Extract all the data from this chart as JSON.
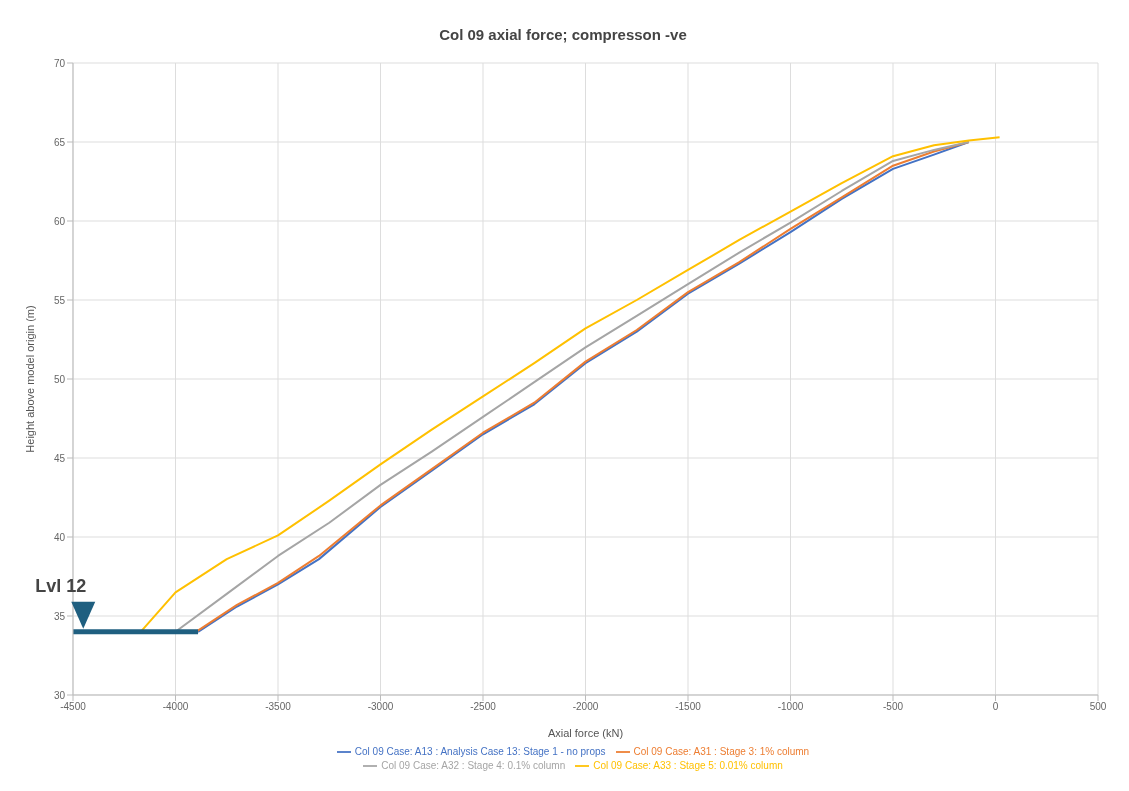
{
  "chart_data": {
    "type": "line",
    "title": "Col 09 axial force; compresson -ve",
    "xlabel": "Axial force (kN)",
    "ylabel": "Height above model origin (m)",
    "xlim": [
      -4500,
      500
    ],
    "xticks": [
      -4500,
      -4000,
      -3500,
      -3000,
      -2500,
      -2000,
      -1500,
      -1000,
      -500,
      0,
      500
    ],
    "ylim": [
      30,
      70
    ],
    "yticks": [
      30,
      35,
      40,
      45,
      50,
      55,
      60,
      65,
      70
    ],
    "grid": true,
    "legend": "bottom",
    "marker": "none",
    "line_style": "solid",
    "series": [
      {
        "name": "Col 09 Case: A13 : Analysis Case 13: Stage 1 - no props",
        "color": "#4472c4",
        "x": [
          -3890,
          -3700,
          -3500,
          -3300,
          -3000,
          -2750,
          -2500,
          -2250,
          -2000,
          -1750,
          -1500,
          -1250,
          -1000,
          -750,
          -500,
          -300,
          -130
        ],
        "values": [
          34,
          35.6,
          37,
          38.6,
          41.9,
          44.2,
          46.5,
          48.4,
          51,
          53,
          55.4,
          57.3,
          59.3,
          61.4,
          63.3,
          64.2,
          65
        ]
      },
      {
        "name": "Col 09 Case: A31 : Stage 3: 1% column",
        "color": "#ed7d31",
        "x": [
          -3900,
          -3700,
          -3500,
          -3300,
          -3000,
          -2750,
          -2500,
          -2250,
          -2000,
          -1750,
          -1500,
          -1250,
          -1000,
          -750,
          -500,
          -300,
          -130
        ],
        "values": [
          34,
          35.7,
          37.1,
          38.8,
          42,
          44.3,
          46.6,
          48.5,
          51.1,
          53.1,
          55.5,
          57.4,
          59.5,
          61.5,
          63.5,
          64.4,
          65
        ]
      },
      {
        "name": "Col 09 Case: A32 : Stage 4: 0.1% column",
        "color": "#a5a5a5",
        "x": [
          -4000,
          -3750,
          -3500,
          -3250,
          -3000,
          -2750,
          -2500,
          -2250,
          -2000,
          -1750,
          -1500,
          -1250,
          -1000,
          -750,
          -500,
          -300,
          -130
        ],
        "values": [
          34,
          36.4,
          38.8,
          40.9,
          43.3,
          45.4,
          47.6,
          49.8,
          52,
          54,
          56,
          58,
          59.9,
          61.9,
          63.8,
          64.5,
          65
        ]
      },
      {
        "name": "Col 09 Case: A33 : Stage 5: 0.01% column",
        "color": "#ffc000",
        "x": [
          -4170,
          -4000,
          -3750,
          -3500,
          -3250,
          -3000,
          -2750,
          -2500,
          -2250,
          -2000,
          -1750,
          -1500,
          -1250,
          -1000,
          -750,
          -500,
          -300,
          -130,
          20
        ],
        "values": [
          34,
          36.5,
          38.6,
          40.1,
          42.3,
          44.6,
          46.8,
          48.9,
          51,
          53.2,
          55,
          56.9,
          58.8,
          60.6,
          62.4,
          64.1,
          64.8,
          65.1,
          65.3
        ]
      },
      {
        "type": "line",
        "color": "#1f5f80",
        "x": [
          -4500,
          -3890
        ],
        "values": [
          34,
          34
        ]
      }
    ],
    "annotations": [
      {
        "text": "Lvl 12",
        "x": -4450,
        "y": 34
      }
    ]
  }
}
